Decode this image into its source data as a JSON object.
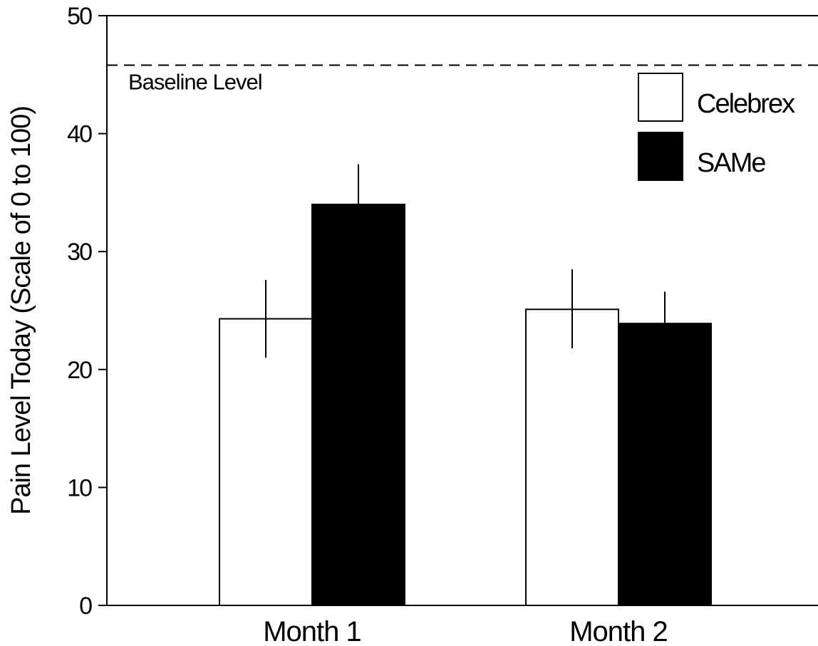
{
  "chart_data": {
    "type": "bar",
    "title": "",
    "xlabel": "",
    "ylabel": "Pain Level Today (Scale of 0 to 100)",
    "ylim": [
      0,
      50
    ],
    "yticks": [
      "0",
      "10",
      "20",
      "30",
      "40",
      "50"
    ],
    "categories": [
      "Month 1",
      "Month 2"
    ],
    "series": [
      {
        "name": "Celebrex",
        "color": "#ffffff",
        "values": [
          24.3,
          25.1
        ],
        "error_upper": [
          27.6,
          28.5
        ],
        "error_lower": [
          21.0,
          21.8
        ]
      },
      {
        "name": "SAMe",
        "color": "#000000",
        "values": [
          34.0,
          23.9
        ],
        "error_upper": [
          37.4,
          26.6
        ]
      }
    ],
    "reference_line": {
      "label": "Baseline Level",
      "value": 45.8,
      "style": "dashed"
    },
    "legend_position": "top-right",
    "grid": false
  }
}
